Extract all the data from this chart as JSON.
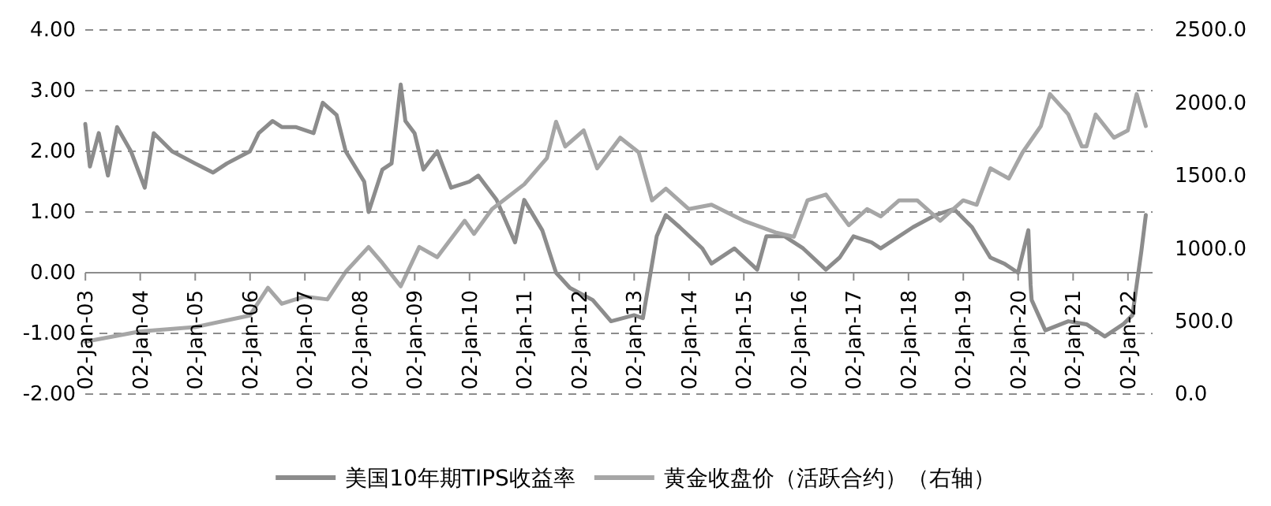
{
  "chart_data": {
    "type": "line",
    "xlim": [
      "2003-01-01",
      "2022-06-15"
    ],
    "xticks": [
      {
        "value": "2003-01-02",
        "label": "02-Jan-03"
      },
      {
        "value": "2004-01-02",
        "label": "02-Jan-04"
      },
      {
        "value": "2005-01-02",
        "label": "02-Jan-05"
      },
      {
        "value": "2006-01-02",
        "label": "02-Jan-06"
      },
      {
        "value": "2007-01-02",
        "label": "02-Jan-07"
      },
      {
        "value": "2008-01-02",
        "label": "02-Jan-08"
      },
      {
        "value": "2009-01-02",
        "label": "02-Jan-09"
      },
      {
        "value": "2010-01-02",
        "label": "02-Jan-10"
      },
      {
        "value": "2011-01-02",
        "label": "02-Jan-11"
      },
      {
        "value": "2012-01-02",
        "label": "02-Jan-12"
      },
      {
        "value": "2013-01-02",
        "label": "02-Jan-13"
      },
      {
        "value": "2014-01-02",
        "label": "02-Jan-14"
      },
      {
        "value": "2015-01-02",
        "label": "02-Jan-15"
      },
      {
        "value": "2016-01-02",
        "label": "02-Jan-16"
      },
      {
        "value": "2017-01-02",
        "label": "02-Jan-17"
      },
      {
        "value": "2018-01-02",
        "label": "02-Jan-18"
      },
      {
        "value": "2019-01-02",
        "label": "02-Jan-19"
      },
      {
        "value": "2020-01-02",
        "label": "02-Jan-20"
      },
      {
        "value": "2021-01-02",
        "label": "02-Jan-21"
      },
      {
        "value": "2022-01-02",
        "label": "02-Jan-22"
      }
    ],
    "ylim": [
      -2,
      4
    ],
    "yticks": [
      {
        "value": -2,
        "label": "-2.00"
      },
      {
        "value": -1,
        "label": "-1.00"
      },
      {
        "value": 0,
        "label": "0.00"
      },
      {
        "value": 1,
        "label": "1.00"
      },
      {
        "value": 2,
        "label": "2.00"
      },
      {
        "value": 3,
        "label": "3.00"
      },
      {
        "value": 4,
        "label": "4.00"
      }
    ],
    "y2lim": [
      0,
      2500
    ],
    "y2ticks": [
      {
        "value": 0,
        "label": "0.0"
      },
      {
        "value": 500,
        "label": "500.0"
      },
      {
        "value": 1000,
        "label": "1000.0"
      },
      {
        "value": 1500,
        "label": "1500.0"
      },
      {
        "value": 2000,
        "label": "2000.0"
      },
      {
        "value": 2500,
        "label": "2500.0"
      }
    ],
    "grid": "y",
    "legend": "bottom",
    "series": [
      {
        "name": "美国10年期TIPS收益率",
        "color": "#8c8c8c",
        "x": [
          "2003-01",
          "2003-02",
          "2003-04",
          "2003-06",
          "2003-08",
          "2003-11",
          "2004-02",
          "2004-04",
          "2004-08",
          "2005-01",
          "2005-05",
          "2005-08",
          "2006-01",
          "2006-03",
          "2006-06",
          "2006-08",
          "2006-11",
          "2007-03",
          "2007-05",
          "2007-08",
          "2007-10",
          "2008-02",
          "2008-03",
          "2008-06",
          "2008-08",
          "2008-10",
          "2008-11",
          "2009-01",
          "2009-03",
          "2009-06",
          "2009-09",
          "2010-01",
          "2010-03",
          "2010-07",
          "2010-11",
          "2011-01",
          "2011-05",
          "2011-08",
          "2011-11",
          "2012-04",
          "2012-08",
          "2013-01",
          "2013-03",
          "2013-06",
          "2013-08",
          "2013-11",
          "2014-04",
          "2014-06",
          "2014-11",
          "2015-04",
          "2015-06",
          "2015-10",
          "2016-02",
          "2016-07",
          "2016-10",
          "2017-01",
          "2017-05",
          "2017-07",
          "2018-02",
          "2018-07",
          "2018-11",
          "2019-03",
          "2019-07",
          "2019-10",
          "2020-01",
          "2020-03-10",
          "2020-03-25",
          "2020-04",
          "2020-07",
          "2020-12",
          "2021-04",
          "2021-08",
          "2021-12",
          "2022-02",
          "2022-04",
          "2022-05"
        ],
        "values": [
          2.45,
          1.75,
          2.3,
          1.6,
          2.4,
          2.0,
          1.4,
          2.3,
          2.0,
          1.8,
          1.65,
          1.8,
          2.0,
          2.3,
          2.5,
          2.4,
          2.4,
          2.3,
          2.8,
          2.6,
          2.0,
          1.5,
          1.0,
          1.7,
          1.8,
          3.1,
          2.5,
          2.3,
          1.7,
          2.0,
          1.4,
          1.5,
          1.6,
          1.2,
          0.5,
          1.2,
          0.7,
          0.0,
          -0.25,
          -0.45,
          -0.8,
          -0.7,
          -0.75,
          0.6,
          0.95,
          0.75,
          0.4,
          0.15,
          0.4,
          0.05,
          0.6,
          0.6,
          0.4,
          0.05,
          0.25,
          0.6,
          0.5,
          0.4,
          0.75,
          0.95,
          1.05,
          0.75,
          0.25,
          0.15,
          0.0,
          0.7,
          -0.2,
          -0.45,
          -0.95,
          -0.8,
          -0.85,
          -1.05,
          -0.85,
          -0.7,
          0.35,
          0.95
        ]
      },
      {
        "name": "黄金收盘价（活跃合约）（右轴）",
        "color": "#a6a6a6",
        "axis": "y2",
        "x": [
          "2003-01",
          "2004-01",
          "2005-01",
          "2006-01",
          "2006-05",
          "2006-08",
          "2007-01",
          "2007-06",
          "2007-10",
          "2008-03",
          "2008-06",
          "2008-10",
          "2009-02",
          "2009-06",
          "2009-12",
          "2010-02",
          "2010-06",
          "2011-01",
          "2011-06",
          "2011-08",
          "2011-10",
          "2012-02",
          "2012-05",
          "2012-10",
          "2013-02",
          "2013-05",
          "2013-08",
          "2014-01",
          "2014-06",
          "2015-01",
          "2015-08",
          "2015-12",
          "2016-03",
          "2016-07",
          "2016-12",
          "2017-04",
          "2017-07",
          "2017-11",
          "2018-03",
          "2018-08",
          "2019-01",
          "2019-04",
          "2019-07",
          "2019-11",
          "2020-02",
          "2020-06",
          "2020-08",
          "2020-12",
          "2021-03",
          "2021-04",
          "2021-06",
          "2021-10",
          "2022-01",
          "2022-03",
          "2022-05"
        ],
        "values": [
          360,
          430,
          460,
          540,
          730,
          620,
          670,
          650,
          840,
          1010,
          900,
          740,
          1010,
          940,
          1190,
          1100,
          1270,
          1440,
          1620,
          1870,
          1700,
          1810,
          1550,
          1760,
          1660,
          1330,
          1410,
          1270,
          1300,
          1190,
          1110,
          1080,
          1330,
          1370,
          1160,
          1270,
          1220,
          1330,
          1330,
          1190,
          1330,
          1300,
          1550,
          1480,
          1660,
          1840,
          2060,
          1920,
          1700,
          1700,
          1920,
          1760,
          1810,
          2060,
          1840
        ]
      }
    ]
  }
}
